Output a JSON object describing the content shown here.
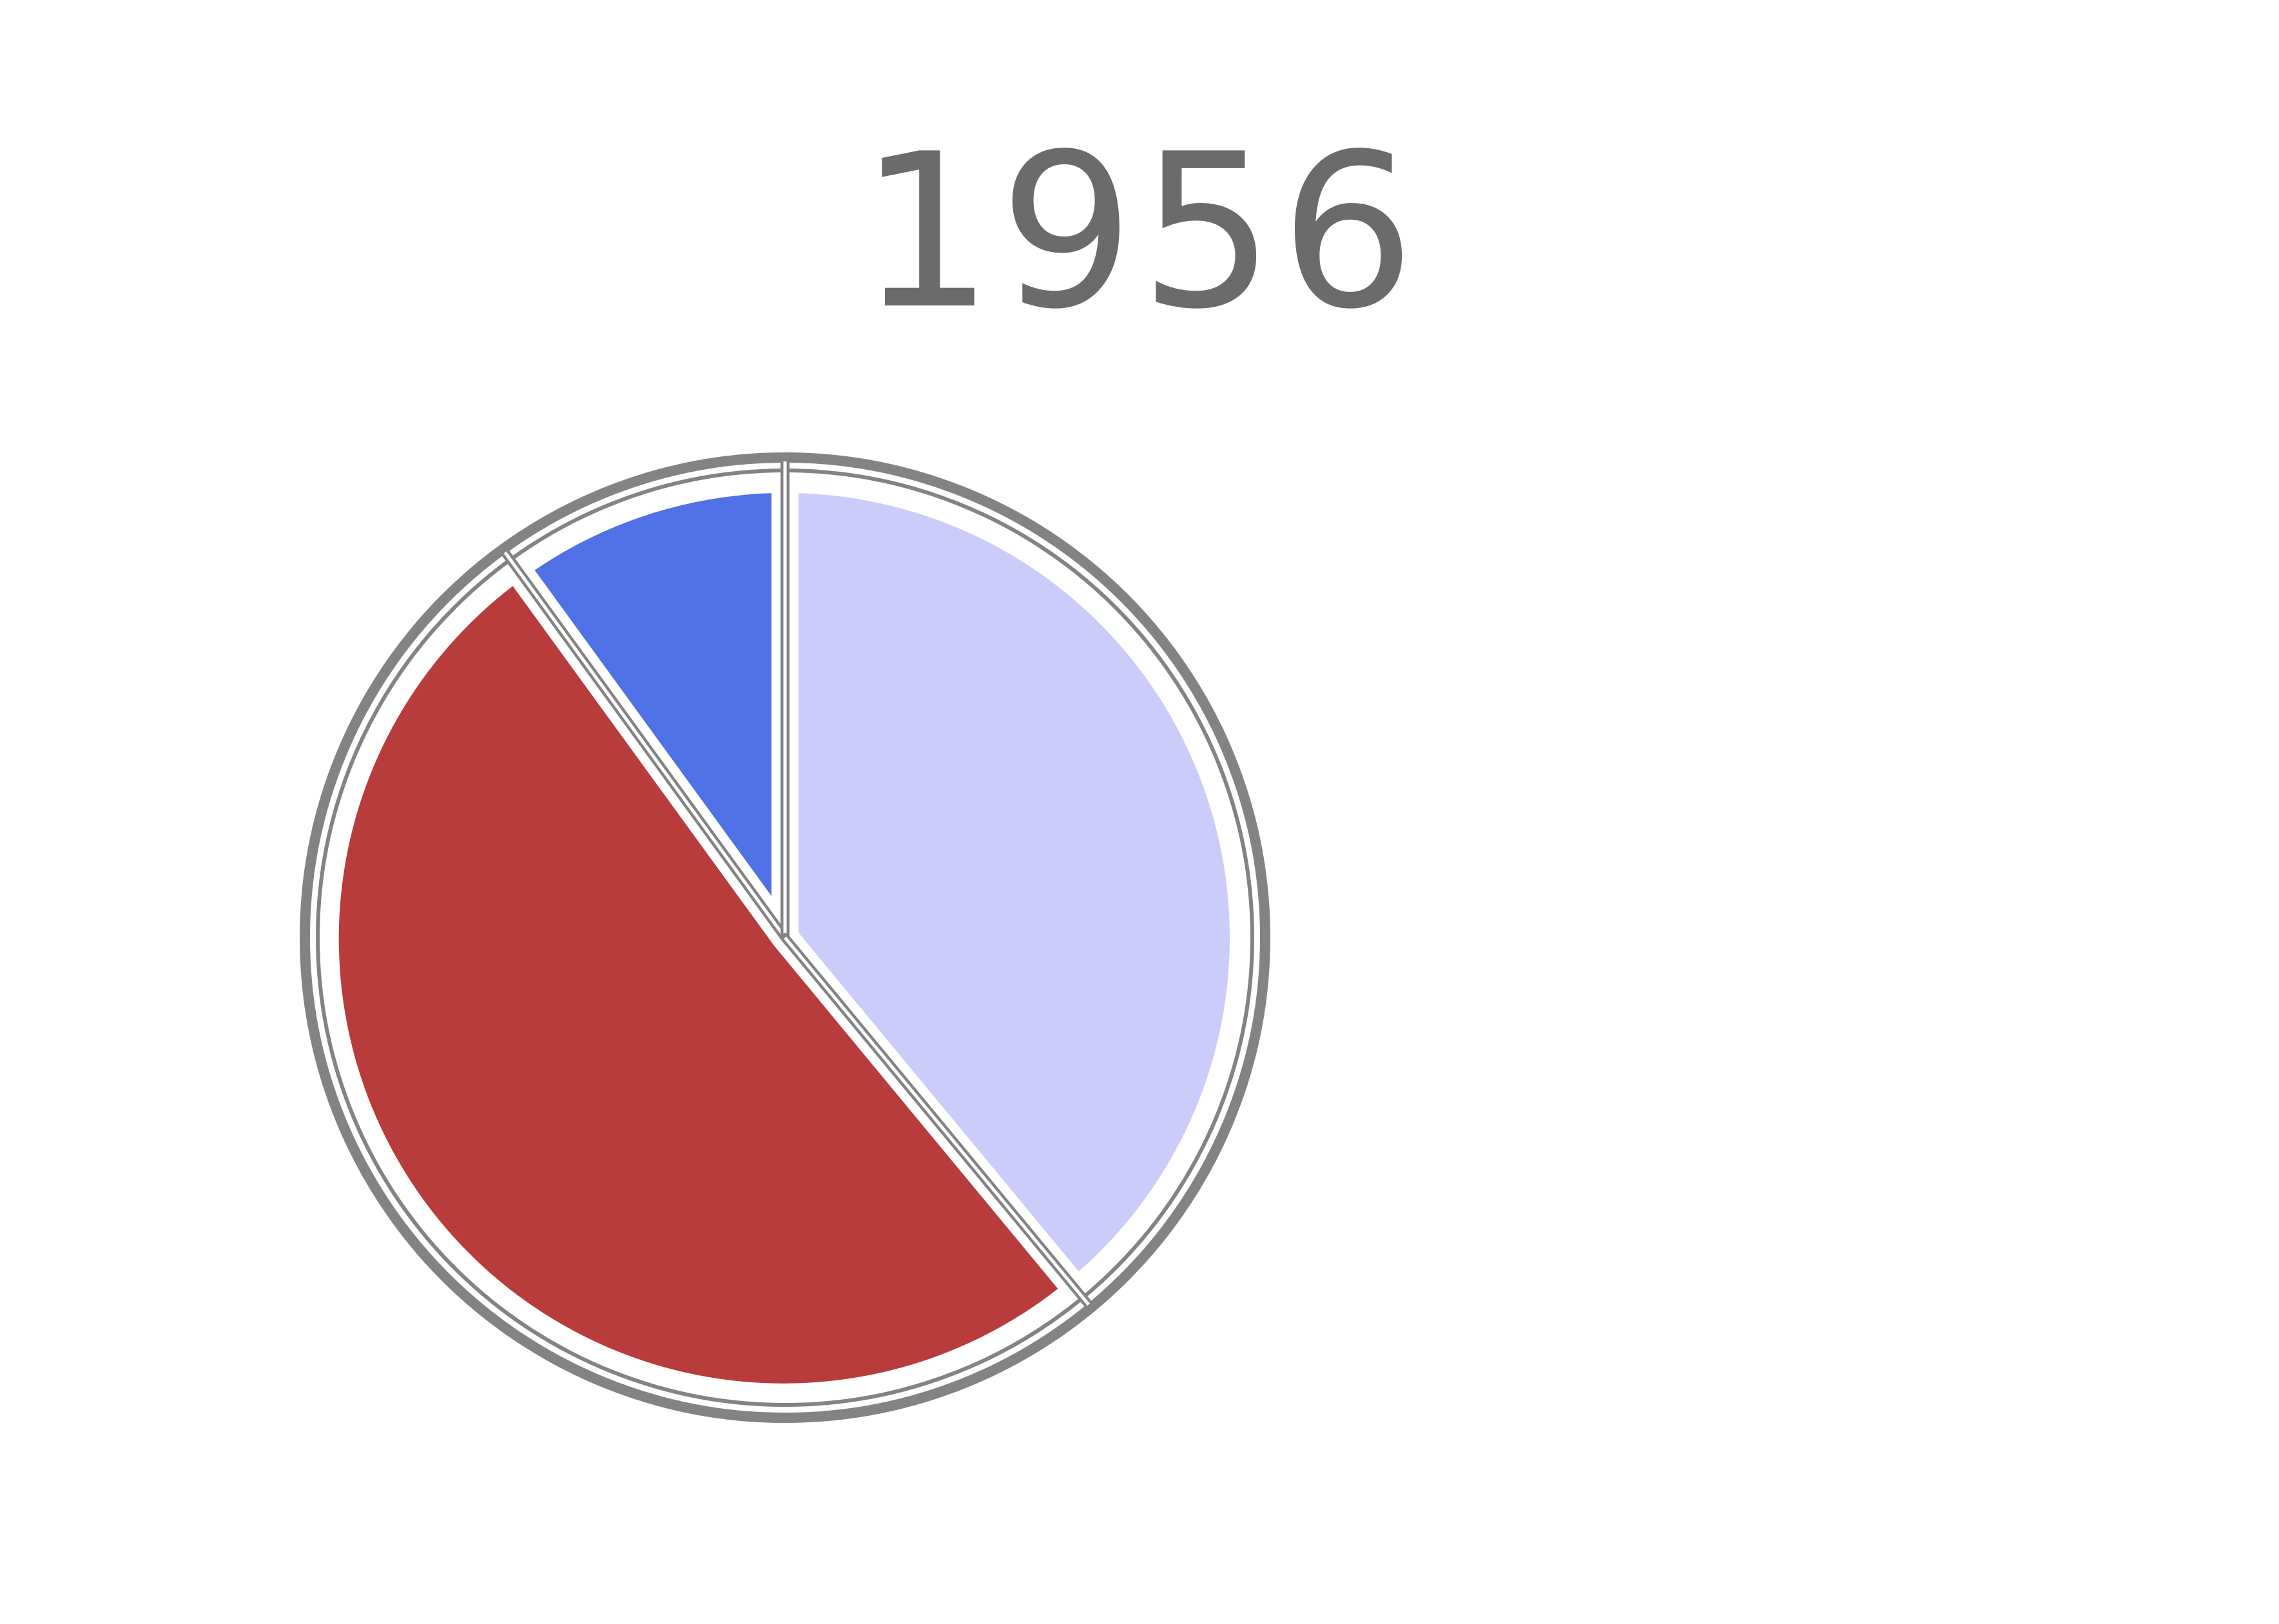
{
  "chart_data": {
    "type": "pie",
    "title": "1956",
    "slices": [
      {
        "value": 10,
        "color": "#5070e6"
      },
      {
        "value": 39,
        "color": "#ccccfb"
      },
      {
        "value": 51,
        "color": "#b93c3c"
      }
    ],
    "outline_color": "#838383",
    "start": "top",
    "direction": "clockwise-from-small-slice"
  }
}
